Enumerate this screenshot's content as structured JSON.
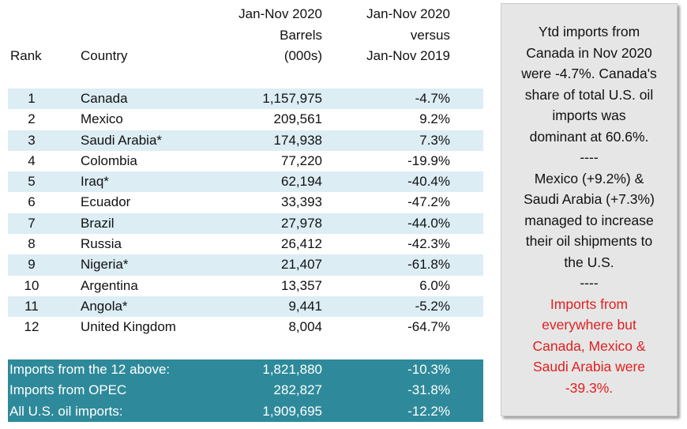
{
  "headers": {
    "rank": "Rank",
    "country": "Country",
    "barrels": [
      "Jan-Nov 2020",
      "Barrels",
      "(000s)"
    ],
    "versus": [
      "Jan-Nov 2020",
      "versus",
      "Jan-Nov 2019"
    ]
  },
  "rows": [
    {
      "rank": "1",
      "country": "Canada",
      "barrels": "1,157,975",
      "change": "-4.7%"
    },
    {
      "rank": "2",
      "country": "Mexico",
      "barrels": "209,561",
      "change": "9.2%"
    },
    {
      "rank": "3",
      "country": "Saudi Arabia*",
      "barrels": "174,938",
      "change": "7.3%"
    },
    {
      "rank": "4",
      "country": "Colombia",
      "barrels": "77,220",
      "change": "-19.9%"
    },
    {
      "rank": "5",
      "country": "Iraq*",
      "barrels": "62,194",
      "change": "-40.4%"
    },
    {
      "rank": "6",
      "country": "Ecuador",
      "barrels": "33,393",
      "change": "-47.2%"
    },
    {
      "rank": "7",
      "country": "Brazil",
      "barrels": "27,978",
      "change": "-44.0%"
    },
    {
      "rank": "8",
      "country": "Russia",
      "barrels": "26,412",
      "change": "-42.3%"
    },
    {
      "rank": "9",
      "country": "Nigeria*",
      "barrels": "21,407",
      "change": "-61.8%"
    },
    {
      "rank": "10",
      "country": "Argentina",
      "barrels": "13,357",
      "change": "6.0%"
    },
    {
      "rank": "11",
      "country": "Angola*",
      "barrels": "9,441",
      "change": "-5.2%"
    },
    {
      "rank": "12",
      "country": "United Kingdom",
      "barrels": "8,004",
      "change": "-64.7%"
    }
  ],
  "totals": [
    {
      "label": "Imports from the 12 above:",
      "barrels": "1,821,880",
      "change": "-10.3%"
    },
    {
      "label": "Imports from OPEC",
      "barrels": "282,827",
      "change": "-31.8%"
    },
    {
      "label": "All U.S. oil imports:",
      "barrels": "1,909,695",
      "change": "-12.2%"
    }
  ],
  "note": {
    "lines_black_1": [
      "Ytd imports from",
      "Canada in Nov 2020",
      "were -4.7%. Canada's",
      "share of total U.S. oil",
      "imports was",
      "dominant at 60.6%."
    ],
    "sep1": "----",
    "lines_black_2": [
      "Mexico (+9.2%) &",
      "Saudi Arabia (+7.3%)",
      "managed to increase",
      "their oil shipments to",
      "the U.S."
    ],
    "sep2": "----",
    "lines_red": [
      "Imports from",
      "everywhere but",
      "Canada, Mexico &",
      "Saudi Arabia were",
      "-39.3%."
    ]
  },
  "colors": {
    "row_shade": "#dcedf4",
    "totals_bg": "#2e8a9a",
    "note_bg": "#e6e6e6",
    "highlight_text": "#e02020"
  }
}
